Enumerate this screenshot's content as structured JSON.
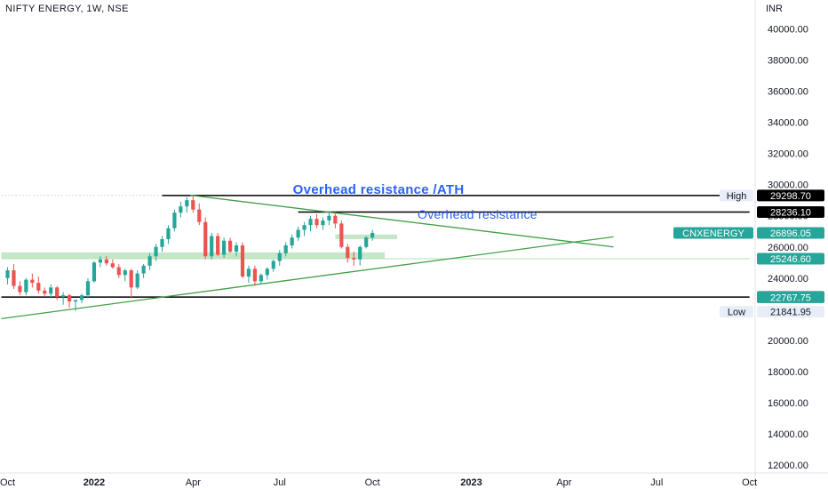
{
  "header": {
    "title": "NIFTY ENERGY, 1W, NSE"
  },
  "colors": {
    "up": "#26a69a",
    "down": "#ef5350",
    "trendline": "#43a047",
    "zone": "#b7e1b9",
    "line_black": "#000000",
    "annotation": "#2962ff",
    "badge_black": "#000000",
    "badge_green": "#26a69a",
    "badge_light": "#e8eef8",
    "grid": "#e0e3eb"
  },
  "chart_data": {
    "type": "candlestick",
    "title": "NIFTY ENERGY, 1W, NSE",
    "currency": "INR",
    "y_range": [
      11500,
      40700
    ],
    "y_ticks": [
      "40000.00",
      "38000.00",
      "36000.00",
      "34000.00",
      "32000.00",
      "30000.00",
      "28000.00",
      "26000.00",
      "24000.00",
      "22000.00",
      "20000.00",
      "18000.00",
      "16000.00",
      "14000.00",
      "12000.00"
    ],
    "y_tick_values": [
      40000,
      38000,
      36000,
      34000,
      32000,
      30000,
      28000,
      26000,
      24000,
      22000,
      20000,
      18000,
      16000,
      14000,
      12000
    ],
    "x_range": [
      -1,
      120
    ],
    "x_ticks": [
      {
        "label": "Oct",
        "week": 0
      },
      {
        "label": "2022",
        "week": 14,
        "bold": true
      },
      {
        "label": "Apr",
        "week": 30
      },
      {
        "label": "Jul",
        "week": 44
      },
      {
        "label": "Oct",
        "week": 59
      },
      {
        "label": "2023",
        "week": 75,
        "bold": true
      },
      {
        "label": "Apr",
        "week": 90
      },
      {
        "label": "Jul",
        "week": 105
      },
      {
        "label": "Oct",
        "week": 120
      }
    ],
    "candles": [
      [
        24000,
        24700,
        23600,
        24500
      ],
      [
        24500,
        24900,
        23300,
        23500
      ],
      [
        23500,
        23800,
        22900,
        23100
      ],
      [
        23100,
        24000,
        22900,
        23900
      ],
      [
        23900,
        24300,
        23400,
        23700
      ],
      [
        23700,
        24100,
        23000,
        23200
      ],
      [
        23200,
        23400,
        22800,
        23000
      ],
      [
        23000,
        23600,
        22700,
        23400
      ],
      [
        23400,
        23500,
        22600,
        22800
      ],
      [
        22800,
        23100,
        22300,
        22900
      ],
      [
        22900,
        23000,
        22100,
        22500
      ],
      [
        22500,
        22600,
        21900,
        22600
      ],
      [
        22600,
        23000,
        22400,
        22900
      ],
      [
        22900,
        24000,
        22700,
        23800
      ],
      [
        23800,
        25100,
        23700,
        25000
      ],
      [
        25000,
        25400,
        24700,
        25200
      ],
      [
        25200,
        25400,
        24800,
        24950
      ],
      [
        24950,
        25200,
        24600,
        24700
      ],
      [
        24700,
        24900,
        24000,
        24200
      ],
      [
        24200,
        24600,
        23800,
        24500
      ],
      [
        24500,
        24600,
        22700,
        23400
      ],
      [
        23400,
        24500,
        23300,
        24300
      ],
      [
        24300,
        24900,
        24000,
        24800
      ],
      [
        24800,
        25600,
        24500,
        25400
      ],
      [
        25400,
        26200,
        25100,
        26000
      ],
      [
        26000,
        26700,
        25700,
        26500
      ],
      [
        26500,
        27400,
        26200,
        27200
      ],
      [
        27200,
        28400,
        27000,
        28200
      ],
      [
        28200,
        28900,
        27900,
        28600
      ],
      [
        28600,
        29200,
        28200,
        29000
      ],
      [
        29000,
        29320,
        28200,
        28400
      ],
      [
        28400,
        28800,
        27400,
        27600
      ],
      [
        27600,
        27900,
        25200,
        25400
      ],
      [
        25400,
        26900,
        25200,
        26700
      ],
      [
        26700,
        26900,
        25400,
        25500
      ],
      [
        25500,
        26600,
        25300,
        26400
      ],
      [
        26400,
        26600,
        25600,
        25700
      ],
      [
        25700,
        26300,
        25400,
        26100
      ],
      [
        26100,
        26300,
        24000,
        24100
      ],
      [
        24100,
        24800,
        23700,
        24600
      ],
      [
        24600,
        24800,
        23500,
        23800
      ],
      [
        23800,
        24300,
        23600,
        24200
      ],
      [
        24200,
        24700,
        23900,
        24600
      ],
      [
        24600,
        25200,
        24400,
        25100
      ],
      [
        25100,
        25800,
        24800,
        25600
      ],
      [
        25600,
        26300,
        25400,
        26100
      ],
      [
        26100,
        26800,
        25900,
        26600
      ],
      [
        26600,
        27300,
        26400,
        27100
      ],
      [
        27100,
        27600,
        26700,
        27400
      ],
      [
        27400,
        28000,
        27000,
        27800
      ],
      [
        27800,
        28100,
        27200,
        27400
      ],
      [
        27400,
        27900,
        27100,
        27700
      ],
      [
        27700,
        28200,
        27400,
        28000
      ],
      [
        28000,
        28250,
        27200,
        27500
      ],
      [
        27500,
        27700,
        25900,
        26000
      ],
      [
        26000,
        26200,
        25000,
        25300
      ],
      [
        25300,
        25700,
        24800,
        25200
      ],
      [
        25200,
        26100,
        24800,
        26000
      ],
      [
        26000,
        26700,
        25900,
        26600
      ],
      [
        26600,
        27100,
        26400,
        26900
      ]
    ],
    "shapes": {
      "zones": [
        {
          "w0": 53,
          "w1": 63,
          "y0": 26500,
          "y1": 26800
        },
        {
          "w0": -1,
          "w1": 61,
          "y0": 25250,
          "y1": 25650
        }
      ],
      "thin_line": {
        "w0": -1,
        "w1": 120,
        "y": 25246.6
      },
      "hlines": [
        {
          "w0": 25,
          "w1": 120,
          "y": 29298.7
        },
        {
          "w0": 47,
          "w1": 120,
          "y": 28236.1
        },
        {
          "w0": -1,
          "w1": 120,
          "y": 22785.25
        }
      ],
      "trendlines": [
        {
          "w0": 29.5,
          "y0": 29320,
          "w1": 98,
          "y1": 26000
        },
        {
          "w0": -1,
          "y0": 21400,
          "w1": 98,
          "y1": 26650
        }
      ],
      "dotted_line": {
        "w0": -1,
        "w1": 120,
        "y": 29300
      }
    },
    "annotations": [
      {
        "text": "Overhead resistance /ATH",
        "w": 60,
        "y": 29400,
        "size": 15,
        "bold": true
      },
      {
        "text": "Overhead resistance",
        "w": 76,
        "y": 27800,
        "size": 14,
        "bold": false
      }
    ],
    "price_badges": [
      {
        "label": "High",
        "value": "29304.05",
        "y": 29304.05,
        "style": "light"
      },
      {
        "label": "",
        "value": "29298.70",
        "y": 29298.7,
        "style": "black"
      },
      {
        "label": "",
        "value": "28236.10",
        "y": 28236.1,
        "style": "black"
      },
      {
        "label": "CNXENERGY",
        "value": "26896.05",
        "y": 26896.05,
        "style": "green"
      },
      {
        "label": "",
        "value": "25246.60",
        "y": 25246.6,
        "style": "green"
      },
      {
        "label": "",
        "value": "22785.25",
        "y": 22785.25,
        "style": "black"
      },
      {
        "label": "",
        "value": "22767.75",
        "y": 22767.75,
        "style": "green"
      },
      {
        "label": "Low",
        "value": "21841.95",
        "y": 21841.95,
        "style": "light"
      }
    ]
  }
}
